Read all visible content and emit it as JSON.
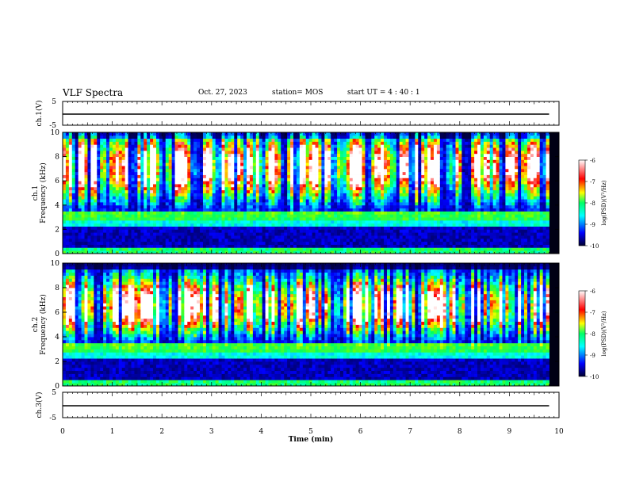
{
  "header": {
    "title": "VLF Spectra",
    "date": "Oct. 27, 2023",
    "station": "station= MOS",
    "start": "start  UT =   4 : 40 : 1"
  },
  "colors": {
    "background": "#ffffff",
    "axis": "#000000",
    "colormap": [
      "#000000",
      "#00007a",
      "#0000ff",
      "#0096ff",
      "#00ffff",
      "#00ff66",
      "#66ff00",
      "#ffff00",
      "#ff8800",
      "#ff0000",
      "#ffffff"
    ]
  },
  "chart_data": [
    {
      "type": "line",
      "ylabel": "ch.1(V)",
      "ylim": [
        -5,
        5
      ],
      "yticks": [
        "5",
        "-5"
      ],
      "series": [
        {
          "x": [
            0,
            9.8
          ],
          "values": [
            0,
            0
          ]
        }
      ]
    },
    {
      "type": "heatmap",
      "ylabel": "ch.1\nFrequency (kHz)",
      "ylim": [
        0,
        10
      ],
      "yticks": [
        "0",
        "2",
        "4",
        "6",
        "8",
        "10"
      ],
      "xlim": [
        0,
        10
      ],
      "colorbar": {
        "label": "log(PSD)(V²/Hz)",
        "range": [
          -10,
          -6
        ],
        "ticks": [
          "-6",
          "-7",
          "-8",
          "-9",
          "-10"
        ]
      }
    },
    {
      "type": "heatmap",
      "ylabel": "ch.2\nFrequency (kHz)",
      "ylim": [
        0,
        10
      ],
      "yticks": [
        "0",
        "2",
        "4",
        "6",
        "8",
        "10"
      ],
      "xlim": [
        0,
        10
      ],
      "colorbar": {
        "label": "log(PSD)(V²/Hz)",
        "range": [
          -10,
          -6
        ],
        "ticks": [
          "-6",
          "-7",
          "-8",
          "-9",
          "-10"
        ]
      }
    },
    {
      "type": "line",
      "ylabel": "ch.3(V)",
      "ylim": [
        -5,
        5
      ],
      "yticks": [
        "5",
        "-5"
      ],
      "xlabel": "Time (min)",
      "xticks": [
        "0",
        "1",
        "2",
        "3",
        "4",
        "5",
        "6",
        "7",
        "8",
        "9",
        "10"
      ],
      "series": [
        {
          "x": [
            0,
            9.8
          ],
          "values": [
            0,
            0
          ]
        }
      ]
    }
  ]
}
